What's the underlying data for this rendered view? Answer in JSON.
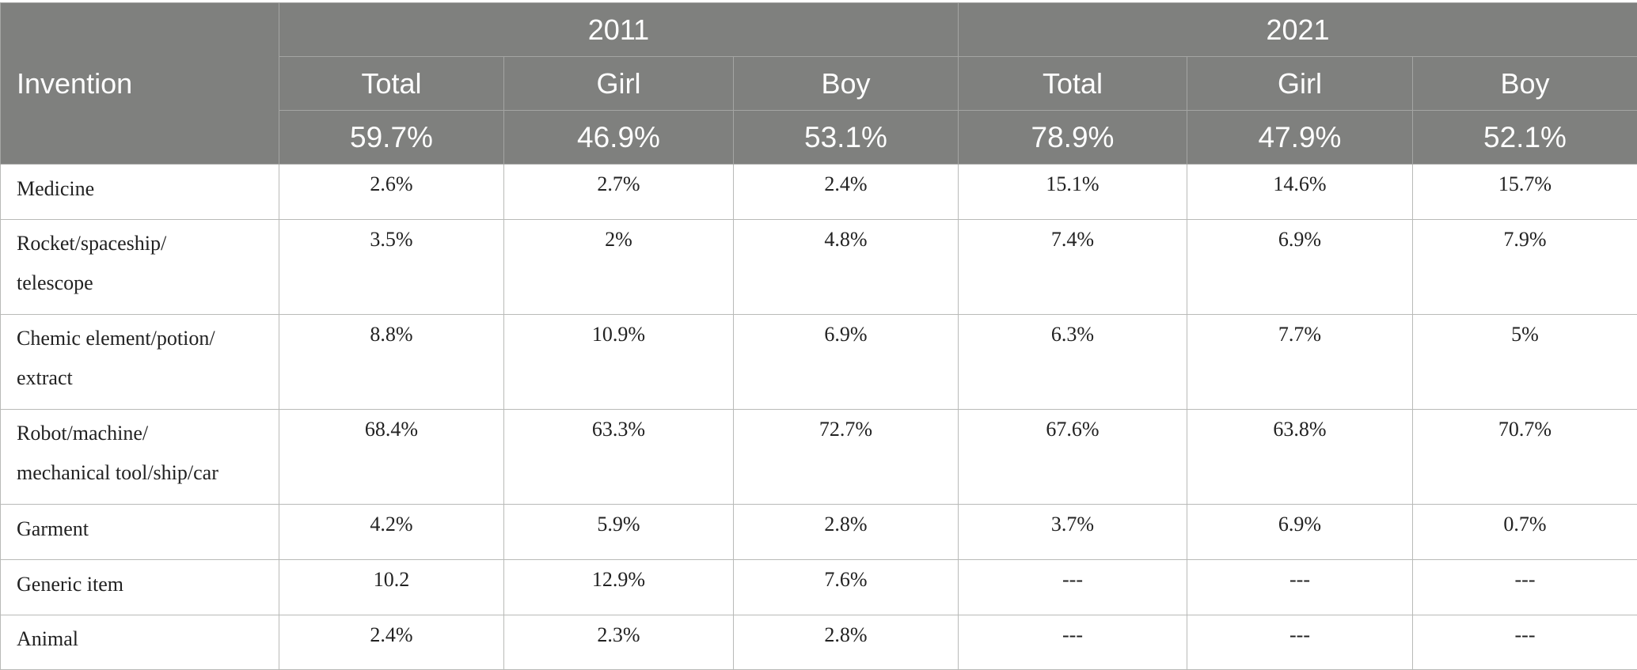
{
  "table": {
    "year_headers": [
      "2011",
      "2021"
    ],
    "column_label": "Invention",
    "sub_headers": [
      "Total",
      "Girl",
      "Boy",
      "Total",
      "Girl",
      "Boy"
    ],
    "totals": [
      "59.7%",
      "46.9%",
      "53.1%",
      "78.9%",
      "47.9%",
      "52.1%"
    ],
    "rows": [
      {
        "label": "Medicine",
        "values": [
          "2.6%",
          "2.7%",
          "2.4%",
          "15.1%",
          "14.6%",
          "15.7%"
        ]
      },
      {
        "label": "Rocket/spaceship/\ntelescope",
        "values": [
          "3.5%",
          "2%",
          "4.8%",
          "7.4%",
          "6.9%",
          "7.9%"
        ]
      },
      {
        "label": "Chemic element/potion/\nextract",
        "values": [
          "8.8%",
          "10.9%",
          "6.9%",
          "6.3%",
          "7.7%",
          "5%"
        ]
      },
      {
        "label": "Robot/machine/\nmechanical tool/ship/car",
        "values": [
          "68.4%",
          "63.3%",
          "72.7%",
          "67.6%",
          "63.8%",
          "70.7%"
        ]
      },
      {
        "label": "Garment",
        "values": [
          "4.2%",
          "5.9%",
          "2.8%",
          "3.7%",
          "6.9%",
          "0.7%"
        ]
      },
      {
        "label": "Generic item",
        "values": [
          "10.2",
          "12.9%",
          "7.6%",
          "---",
          "---",
          "---"
        ]
      },
      {
        "label": "Animal",
        "values": [
          "2.4%",
          "2.3%",
          "2.8%",
          "---",
          "---",
          "---"
        ]
      }
    ]
  }
}
